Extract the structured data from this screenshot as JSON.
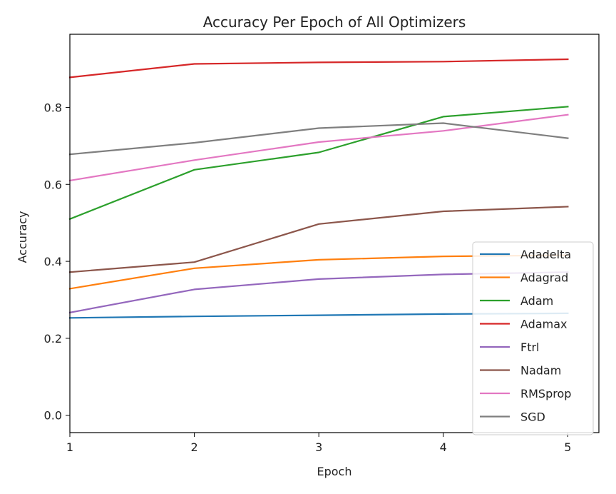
{
  "chart_data": {
    "type": "line",
    "title": "Accuracy Per Epoch of All Optimizers",
    "xlabel": "Epoch",
    "ylabel": "Accuracy",
    "x": [
      1,
      2,
      3,
      4,
      5
    ],
    "xlim": [
      1,
      5.25
    ],
    "ylim": [
      -0.045,
      0.99
    ],
    "xticks": [
      1,
      2,
      3,
      4,
      5
    ],
    "yticks": [
      0.0,
      0.2,
      0.4,
      0.6,
      0.8
    ],
    "ytick_labels": [
      "0.0",
      "0.2",
      "0.4",
      "0.6",
      "0.8"
    ],
    "grid": false,
    "legend_position": "lower-right",
    "series": [
      {
        "name": "Adadelta",
        "color": "#1f77b4",
        "values": [
          0.253,
          0.257,
          0.26,
          0.263,
          0.265
        ]
      },
      {
        "name": "Adagrad",
        "color": "#ff7f0e",
        "values": [
          0.329,
          0.382,
          0.404,
          0.413,
          0.416
        ]
      },
      {
        "name": "Adam",
        "color": "#2ca02c",
        "values": [
          0.51,
          0.638,
          0.683,
          0.776,
          0.802
        ]
      },
      {
        "name": "Adamax",
        "color": "#d62728",
        "values": [
          0.878,
          0.913,
          0.917,
          0.919,
          0.925
        ]
      },
      {
        "name": "Ftrl",
        "color": "#9467bd",
        "values": [
          0.267,
          0.327,
          0.354,
          0.366,
          0.372
        ]
      },
      {
        "name": "Nadam",
        "color": "#8c564b",
        "values": [
          0.372,
          0.398,
          0.497,
          0.53,
          0.542
        ]
      },
      {
        "name": "RMSprop",
        "color": "#e377c2",
        "values": [
          0.61,
          0.663,
          0.71,
          0.739,
          0.781
        ]
      },
      {
        "name": "SGD",
        "color": "#7f7f7f",
        "values": [
          0.678,
          0.708,
          0.746,
          0.759,
          0.72
        ]
      }
    ]
  }
}
